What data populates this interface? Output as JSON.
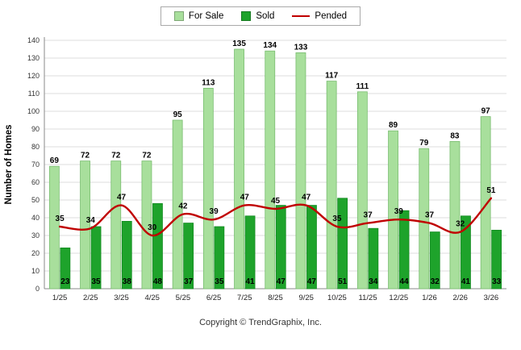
{
  "chart_data": {
    "type": "bar",
    "subtype": "grouped-bars-with-line",
    "categories": [
      "1/25",
      "2/25",
      "3/25",
      "4/25",
      "5/25",
      "6/25",
      "7/25",
      "8/25",
      "9/25",
      "10/25",
      "11/25",
      "12/25",
      "1/26",
      "2/26",
      "3/26"
    ],
    "series": [
      {
        "name": "For Sale",
        "type": "bar",
        "color": "#A8DF9C",
        "edge_color": "#79BD70",
        "values": [
          69,
          72,
          72,
          72,
          95,
          113,
          135,
          134,
          133,
          117,
          111,
          89,
          79,
          83,
          97
        ]
      },
      {
        "name": "Sold",
        "type": "bar",
        "color": "#1EA32B",
        "edge_color": "#128A20",
        "values": [
          23,
          35,
          38,
          48,
          37,
          35,
          41,
          47,
          47,
          51,
          34,
          44,
          32,
          41,
          33
        ]
      },
      {
        "name": "Pended",
        "type": "line",
        "color": "#C00000",
        "values": [
          35,
          34,
          47,
          30,
          42,
          39,
          47,
          45,
          47,
          35,
          37,
          39,
          37,
          32,
          51
        ]
      }
    ],
    "title": "",
    "xlabel": "",
    "ylabel": "Number of Homes",
    "ylim": [
      0,
      140
    ],
    "ytick_step": 10,
    "grid": true,
    "legend_position": "top-center",
    "colors": {
      "gridline": "#DCDCDC",
      "axis": "#8A8A8A",
      "tick_label": "#333333",
      "value_label": "#000000"
    }
  },
  "footer": {
    "copyright": "Copyright © TrendGraphix, Inc."
  }
}
